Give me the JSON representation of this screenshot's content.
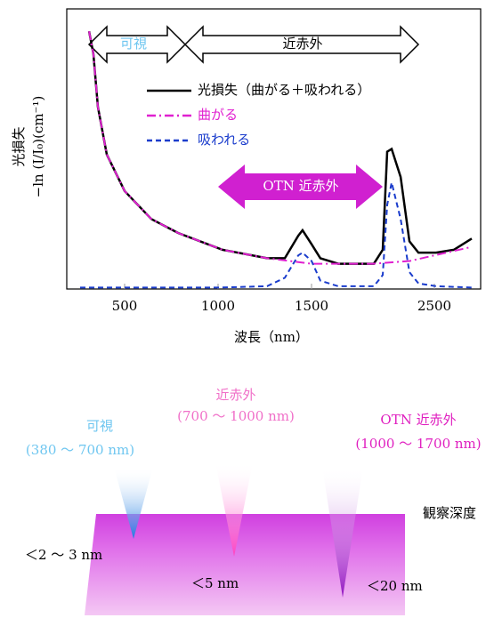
{
  "chart_data": {
    "type": "line",
    "x_label": "波長（nm）",
    "y_label": [
      "光損失",
      "−ln (I/I₀)(cm⁻¹)"
    ],
    "xlim": [
      190,
      2877
    ],
    "xticks": [
      500,
      1000,
      1500,
      2500
    ],
    "ylim": [
      0,
      10
    ],
    "annotations": [
      "可視",
      "近赤外",
      "OTN 近赤外"
    ],
    "series": [
      {
        "name": "光損失（曲がる＋吸われる）",
        "color": "#000000",
        "dash": "solid",
        "x": [
          310,
          333,
          357,
          405,
          500,
          643,
          786,
          1024,
          1262,
          1357,
          1429,
          1452,
          1500,
          1572,
          1717,
          2007,
          2080,
          2116,
          2152,
          2225,
          2297,
          2370,
          2514,
          2659,
          2804
        ],
        "values": [
          9.2,
          8.4,
          6.5,
          4.8,
          3.5,
          2.5,
          2.0,
          1.4,
          1.1,
          1.1,
          1.9,
          2.1,
          1.6,
          1.1,
          0.9,
          0.9,
          1.4,
          4.9,
          5.0,
          4.0,
          1.7,
          1.3,
          1.3,
          1.4,
          1.8
        ]
      },
      {
        "name": "曲がる",
        "color": "#e020d0",
        "dash": "dashdot",
        "x": [
          310,
          333,
          357,
          405,
          500,
          643,
          786,
          1024,
          1262,
          1500,
          2000,
          2300,
          2500,
          2800
        ],
        "values": [
          9.2,
          8.4,
          6.5,
          4.8,
          3.5,
          2.5,
          2.0,
          1.4,
          1.1,
          0.9,
          0.9,
          1.0,
          1.2,
          1.5
        ]
      },
      {
        "name": "吸われる",
        "color": "#1a3ccc",
        "dash": "dashed",
        "x": [
          262,
          1000,
          1262,
          1357,
          1429,
          1452,
          1500,
          1572,
          1717,
          2007,
          2080,
          2116,
          2152,
          2225,
          2297,
          2370,
          2514,
          2804
        ],
        "values": [
          0.05,
          0.05,
          0.1,
          0.4,
          1.2,
          1.3,
          1.0,
          0.3,
          0.1,
          0.1,
          0.5,
          3.0,
          3.8,
          2.5,
          0.6,
          0.2,
          0.1,
          0.05
        ]
      }
    ]
  },
  "diagram": {
    "bands": [
      {
        "label": "可視",
        "range": "(380 ～ 700 nm)"
      },
      {
        "label": "近赤外",
        "range": "(700 ～ 1000 nm)"
      },
      {
        "label": "OTN 近赤外",
        "range": "(1000 ～ 1700 nm)"
      }
    ],
    "depth_title": "観察深度",
    "depths": [
      "＜2 ～ 3 nm",
      "＜5 nm",
      "＜20 nm"
    ]
  }
}
